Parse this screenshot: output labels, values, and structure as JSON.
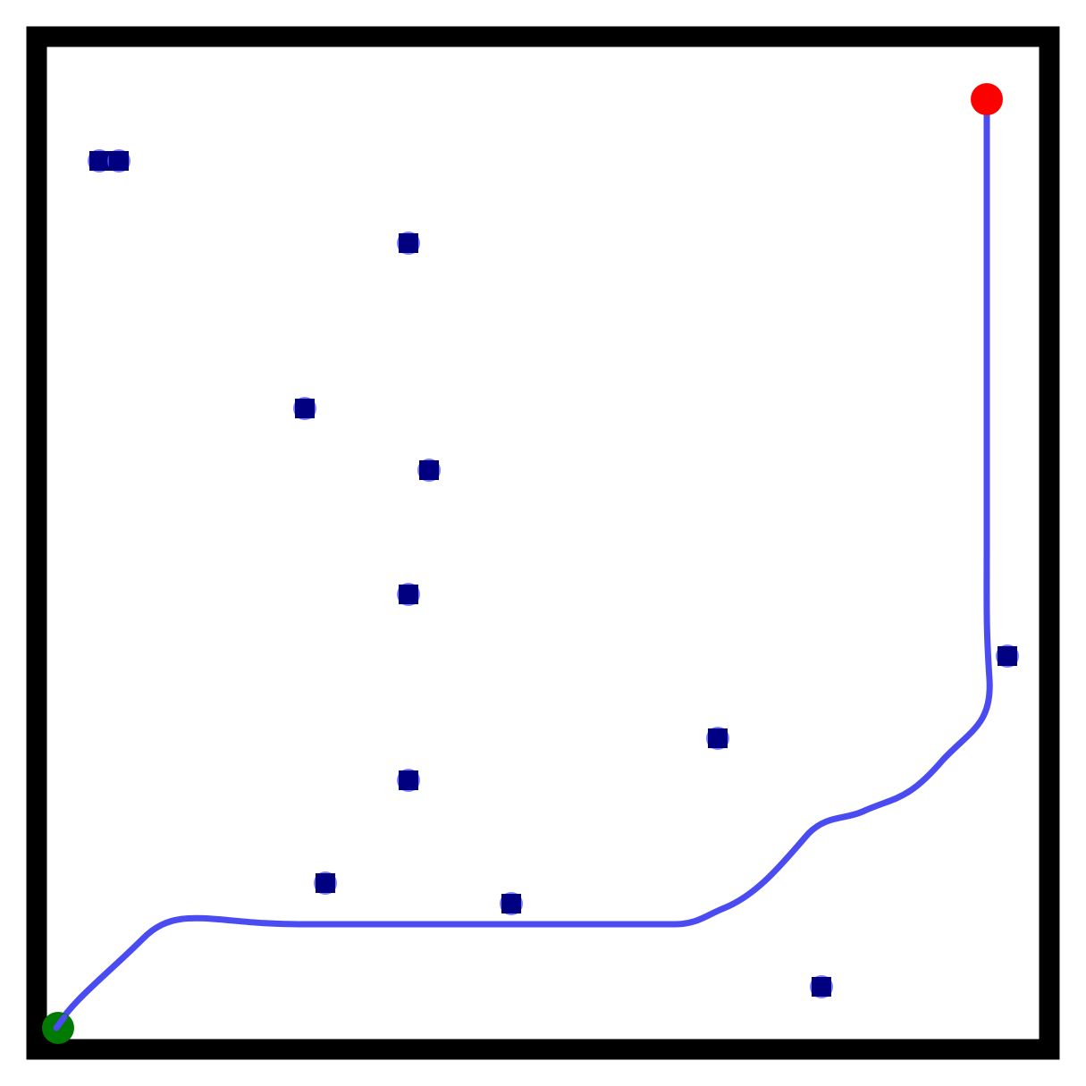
{
  "map": {
    "background": "#ffffff",
    "wall_color": "#000000",
    "obstacle_fill": "#000080",
    "obstacle_halo": "#5555ff",
    "path_color": "#4b4bf2",
    "start_color": "#007a00",
    "goal_color": "#ff0000"
  },
  "legend": {
    "start": "start-marker",
    "goal": "goal-marker",
    "path": "planned-path",
    "obstacle": "obstacle"
  }
}
